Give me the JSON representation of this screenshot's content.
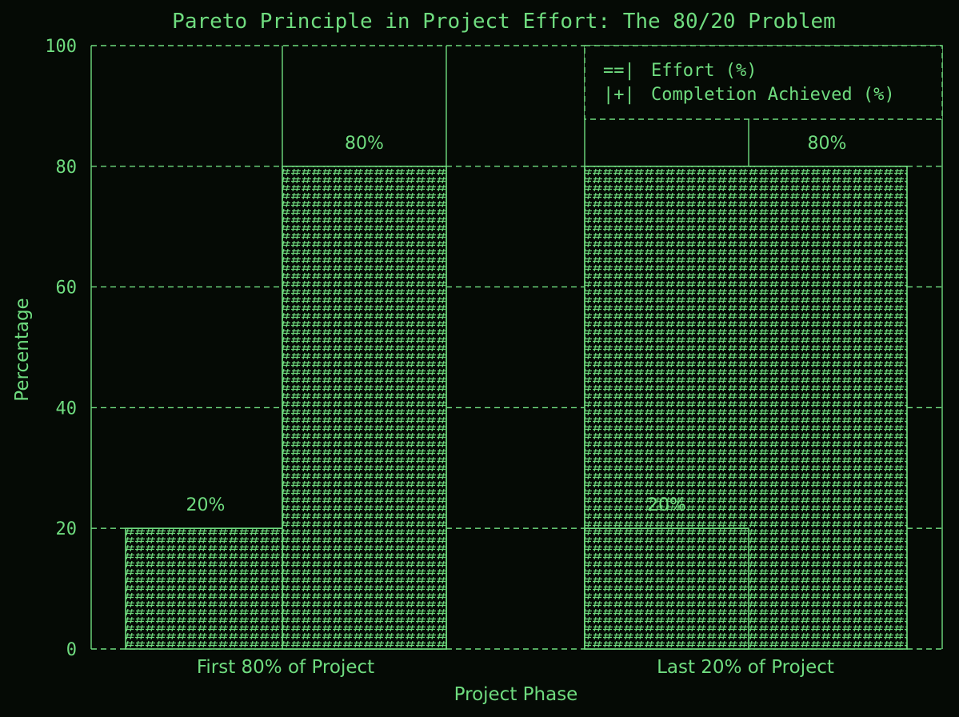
{
  "chart_data": {
    "type": "bar",
    "title": "Pareto Principle in Project Effort: The 80/20 Problem",
    "xlabel": "Project Phase",
    "ylabel": "Percentage",
    "ylim": [
      0,
      100
    ],
    "yticks": [
      "0",
      "20",
      "40",
      "60",
      "80",
      "100"
    ],
    "categories": [
      "First 80% of Project",
      "Last 20% of Project"
    ],
    "series": [
      {
        "name": "Effort (%)",
        "values": [
          20,
          80
        ],
        "labels": [
          "20%",
          "80%"
        ],
        "legend_glyph": "==|"
      },
      {
        "name": "Completion Achieved (%)",
        "values": [
          80,
          20
        ],
        "labels": [
          "80%",
          "20%"
        ],
        "legend_glyph": "|+|"
      }
    ],
    "grid": true,
    "legend": "top-right",
    "style": "ascii",
    "bar_fill_char": "#",
    "colors": {
      "background": "#050a05",
      "foreground": "#6fdc7f"
    }
  }
}
